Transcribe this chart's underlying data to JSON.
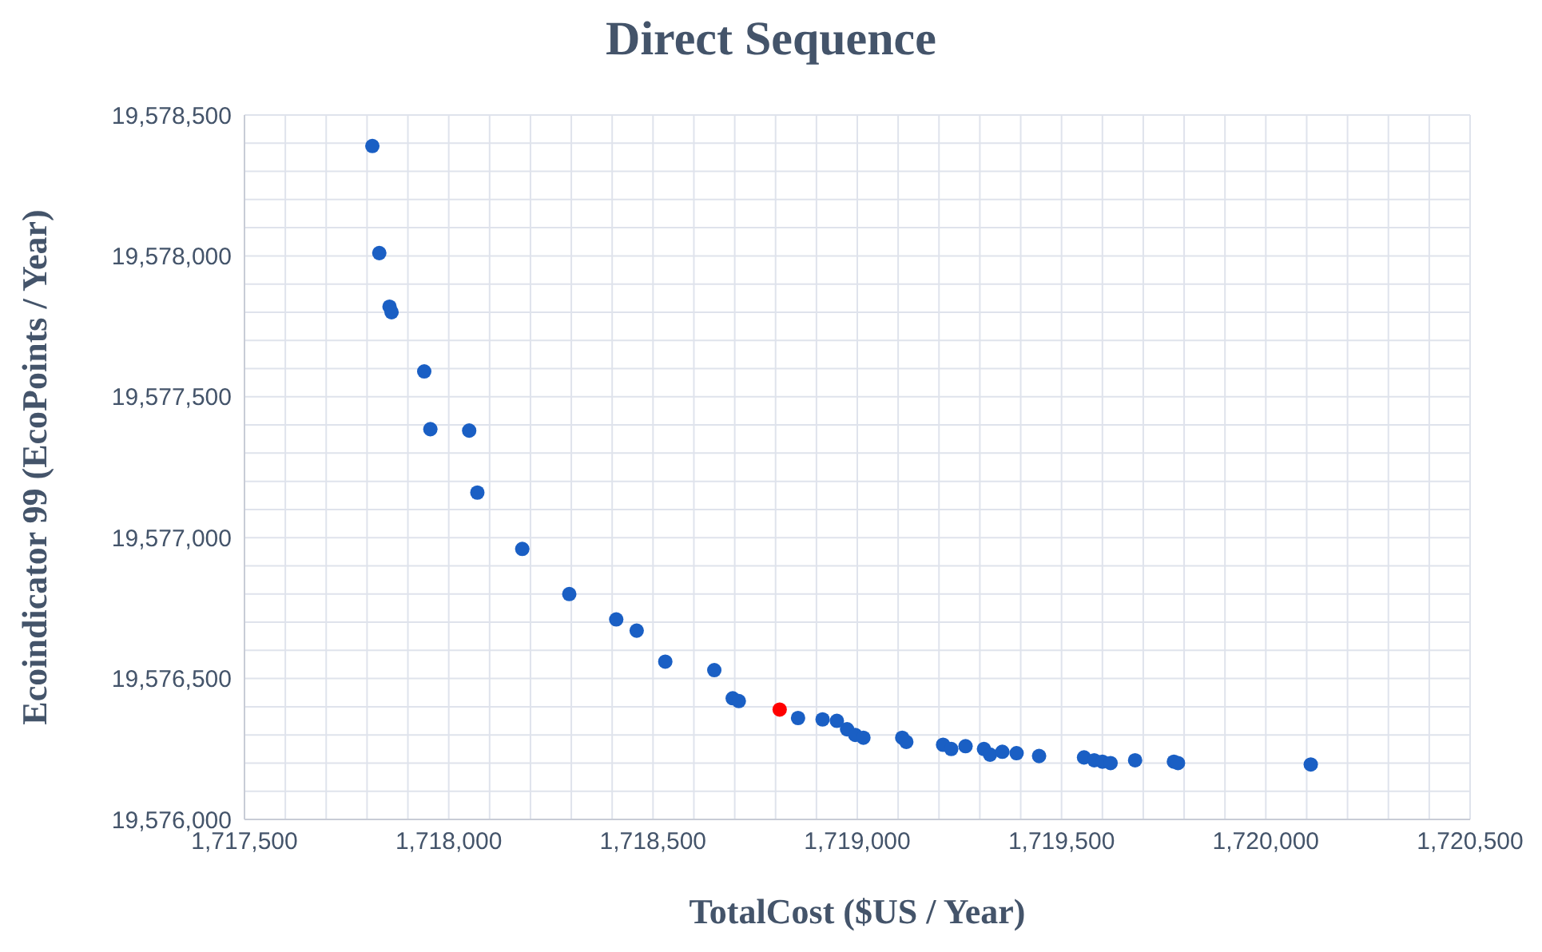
{
  "chart_data": {
    "type": "scatter",
    "title": "Direct Sequence",
    "xlabel": "TotalCost ($US / Year)",
    "ylabel": "Ecoindicator 99 (EcoPoints / Year)",
    "xlim": [
      1717500,
      1720500
    ],
    "xticks": [
      {
        "value": 1717500,
        "label": "1,717,500"
      },
      {
        "value": 1718000,
        "label": "1,718,000"
      },
      {
        "value": 1718500,
        "label": "1,718,500"
      },
      {
        "value": 1719000,
        "label": "1,719,000"
      },
      {
        "value": 1719500,
        "label": "1,719,500"
      },
      {
        "value": 1720000,
        "label": "1,720,000"
      },
      {
        "value": 1720500,
        "label": "1,720,500"
      }
    ],
    "ylim": [
      19576000,
      19578500
    ],
    "yticks": [
      {
        "value": 19576000,
        "label": "19,576,000"
      },
      {
        "value": 19576500,
        "label": "19,576,500"
      },
      {
        "value": 19577000,
        "label": "19,577,000"
      },
      {
        "value": 19577500,
        "label": "19,577,500"
      },
      {
        "value": 19578000,
        "label": "19,578,000"
      },
      {
        "value": 19578500,
        "label": "19,578,500"
      }
    ],
    "grid": true,
    "marker": "circle",
    "series": [
      {
        "color": "#1a5fc4",
        "x": [
          1717813,
          1717830,
          1717855,
          1717860,
          1717940,
          1717955,
          1718050,
          1718070,
          1718180,
          1718295,
          1718410,
          1718460,
          1718530,
          1718650,
          1718695,
          1718710,
          1718855,
          1718915,
          1718950,
          1718975,
          1718995,
          1719015,
          1719110,
          1719120,
          1719210,
          1719230,
          1719265,
          1719310,
          1719325,
          1719355,
          1719390,
          1719445,
          1719555,
          1719580,
          1719600,
          1719620,
          1719680,
          1719775,
          1719785,
          1720110
        ],
        "values": [
          19578390,
          19578010,
          19577820,
          19577800,
          19577590,
          19577385,
          19577380,
          19577160,
          19576960,
          19576800,
          19576710,
          19576670,
          19576560,
          19576530,
          19576430,
          19576420,
          19576360,
          19576355,
          19576350,
          19576320,
          19576300,
          19576290,
          19576290,
          19576275,
          19576265,
          19576250,
          19576260,
          19576250,
          19576230,
          19576240,
          19576235,
          19576225,
          19576220,
          19576210,
          19576205,
          19576200,
          19576210,
          19576205,
          19576200,
          19576195
        ]
      },
      {
        "color": "#ff0000",
        "x": [
          1718810
        ],
        "values": [
          19576390
        ]
      }
    ]
  }
}
